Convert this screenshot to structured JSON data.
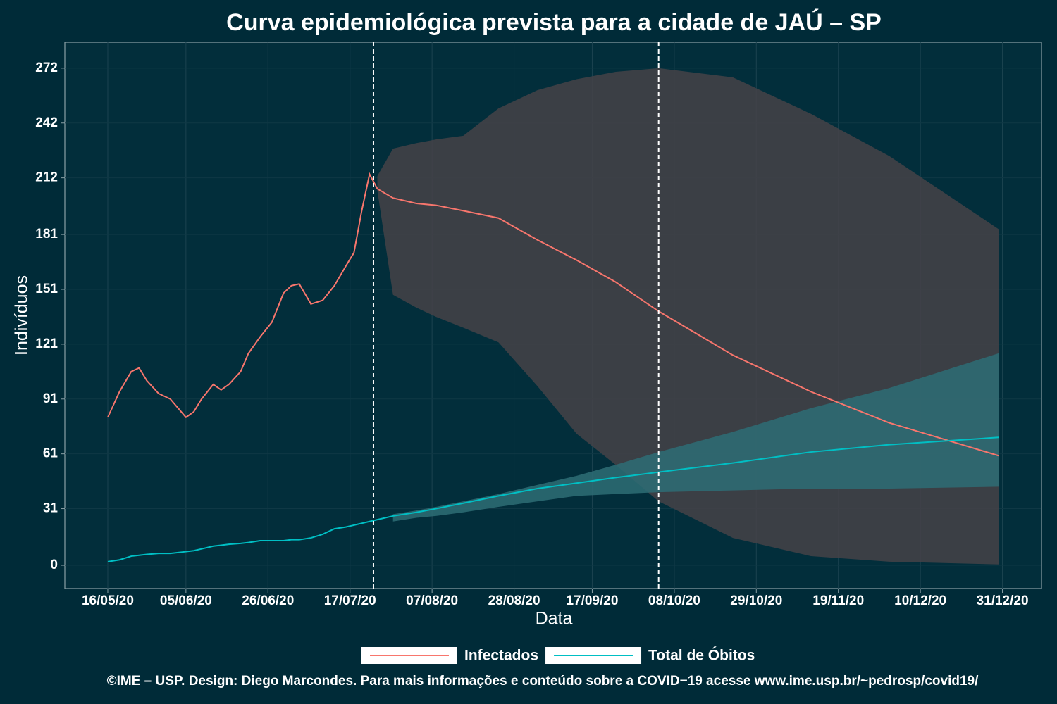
{
  "chart_data": {
    "type": "line",
    "title": "Curva epidemiológica prevista para a cidade de JAÚ – SP",
    "x_label": "Data",
    "y_label": "Indivíduos",
    "caption": "©IME – USP. Design: Diego Marcondes. Para mais informações e conteúdo sobre a COVID−19 acesse www.ime.usp.br/~pedrosp/covid19/",
    "x": [
      "16/05/20",
      "19/05/20",
      "22/05/20",
      "24/05/20",
      "26/05/20",
      "29/05/20",
      "01/06/20",
      "03/06/20",
      "05/06/20",
      "07/06/20",
      "09/06/20",
      "12/06/20",
      "14/06/20",
      "16/06/20",
      "19/06/20",
      "21/06/20",
      "24/06/20",
      "27/06/20",
      "30/06/20",
      "02/07/20",
      "04/07/20",
      "07/07/20",
      "10/07/20",
      "13/07/20",
      "16/07/20",
      "18/07/20",
      "20/07/20",
      "22/07/20",
      "24/07/20",
      "28/07/20",
      "03/08/20",
      "08/08/20",
      "15/08/20",
      "24/08/20",
      "03/09/20",
      "13/09/20",
      "23/09/20",
      "04/10/20",
      "23/10/20",
      "12/11/20",
      "02/12/20",
      "30/12/20"
    ],
    "series": [
      {
        "name": "Infectados",
        "color": "#f8766d",
        "band_color": "#454248",
        "values": [
          81,
          95,
          106,
          108,
          101,
          94,
          91,
          86,
          81,
          84,
          91,
          99,
          96,
          99,
          106,
          116,
          125,
          133,
          149,
          153,
          154,
          143,
          145,
          153,
          164,
          171,
          194,
          214,
          206,
          201,
          198,
          197,
          194,
          190,
          178,
          167,
          155,
          139,
          115,
          95,
          78,
          60
        ],
        "lower": [
          null,
          null,
          null,
          null,
          null,
          null,
          null,
          null,
          null,
          null,
          null,
          null,
          null,
          null,
          null,
          null,
          null,
          null,
          null,
          null,
          null,
          null,
          null,
          null,
          null,
          null,
          null,
          null,
          205,
          148,
          141,
          136,
          130,
          122,
          98,
          72,
          55,
          35,
          15,
          5,
          2,
          0.5
        ],
        "upper": [
          null,
          null,
          null,
          null,
          null,
          null,
          null,
          null,
          null,
          null,
          null,
          null,
          null,
          null,
          null,
          null,
          null,
          null,
          null,
          null,
          null,
          null,
          null,
          null,
          null,
          null,
          null,
          null,
          213,
          228,
          231,
          233,
          235,
          250,
          260,
          266,
          270,
          272,
          267,
          247,
          224,
          184
        ]
      },
      {
        "name": "Total de Óbitos",
        "color": "#00bfc4",
        "band_color": "#2e6d75",
        "values": [
          2,
          3,
          5,
          5.5,
          6,
          6.5,
          6.5,
          7,
          7.5,
          8,
          9,
          10.5,
          11,
          11.5,
          12,
          12.5,
          13.5,
          13.5,
          13.5,
          14,
          14,
          15,
          17,
          20,
          21,
          22,
          23,
          24,
          25,
          27,
          29,
          31,
          34,
          38,
          42,
          45,
          48,
          51,
          56,
          62,
          66,
          70
        ],
        "lower": [
          null,
          null,
          null,
          null,
          null,
          null,
          null,
          null,
          null,
          null,
          null,
          null,
          null,
          null,
          null,
          null,
          null,
          null,
          null,
          null,
          null,
          null,
          null,
          null,
          null,
          null,
          null,
          null,
          null,
          24,
          26,
          27,
          29,
          32,
          35,
          38,
          39,
          40,
          41,
          42,
          42,
          43
        ],
        "upper": [
          null,
          null,
          null,
          null,
          null,
          null,
          null,
          null,
          null,
          null,
          null,
          null,
          null,
          null,
          null,
          null,
          null,
          null,
          null,
          null,
          null,
          null,
          null,
          null,
          null,
          null,
          null,
          null,
          null,
          28,
          30,
          32,
          35,
          39,
          44,
          49,
          55,
          62,
          73,
          86,
          97,
          116
        ]
      }
    ],
    "vlines": [
      "23/07/20",
      "04/10/20"
    ],
    "xlim": [
      "05/05/20",
      "10/01/21"
    ],
    "xticks": [
      "16/05/20",
      "05/06/20",
      "26/06/20",
      "17/07/20",
      "07/08/20",
      "28/08/20",
      "17/09/20",
      "08/10/20",
      "29/10/20",
      "19/11/20",
      "10/12/20",
      "31/12/20"
    ],
    "ylim": [
      -12.7,
      286.2
    ],
    "yticks": [
      0,
      31,
      61,
      91,
      121,
      151,
      181,
      212,
      242,
      272
    ],
    "grid": true,
    "legend": "bottom"
  }
}
